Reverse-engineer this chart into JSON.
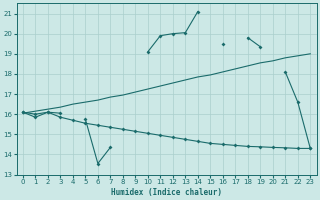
{
  "xlabel": "Humidex (Indice chaleur)",
  "bg_color": "#cce8e6",
  "line_color": "#1a6b6b",
  "grid_color": "#aacfcd",
  "x_all": [
    0,
    1,
    2,
    3,
    4,
    5,
    6,
    7,
    8,
    9,
    10,
    11,
    12,
    13,
    14,
    15,
    16,
    17,
    18,
    19,
    20,
    21,
    22,
    23
  ],
  "curve_top_y": [
    16.1,
    15.85,
    16.1,
    16.05,
    null,
    15.75,
    13.55,
    14.35,
    null,
    null,
    19.1,
    19.9,
    20.0,
    20.05,
    21.1,
    null,
    19.5,
    null,
    19.8,
    19.35,
    null,
    18.1,
    16.6,
    14.3
  ],
  "curve_mid_y": [
    16.05,
    16.15,
    16.25,
    16.35,
    16.5,
    16.6,
    16.7,
    16.85,
    16.95,
    17.1,
    17.25,
    17.4,
    17.55,
    17.7,
    17.85,
    17.95,
    18.1,
    18.25,
    18.4,
    18.55,
    18.65,
    18.8,
    18.9,
    19.0
  ],
  "curve_bot_y": [
    16.1,
    16.0,
    16.1,
    15.85,
    15.7,
    15.55,
    15.45,
    15.35,
    15.25,
    15.15,
    15.05,
    14.95,
    14.85,
    14.75,
    14.65,
    14.55,
    14.5,
    14.45,
    14.4,
    14.38,
    14.35,
    14.33,
    14.3,
    14.3
  ],
  "ylim": [
    13,
    21.5
  ],
  "xlim": [
    -0.5,
    23.5
  ],
  "yticks": [
    13,
    14,
    15,
    16,
    17,
    18,
    19,
    20,
    21
  ],
  "xticks": [
    0,
    1,
    2,
    3,
    4,
    5,
    6,
    7,
    8,
    9,
    10,
    11,
    12,
    13,
    14,
    15,
    16,
    17,
    18,
    19,
    20,
    21,
    22,
    23
  ]
}
